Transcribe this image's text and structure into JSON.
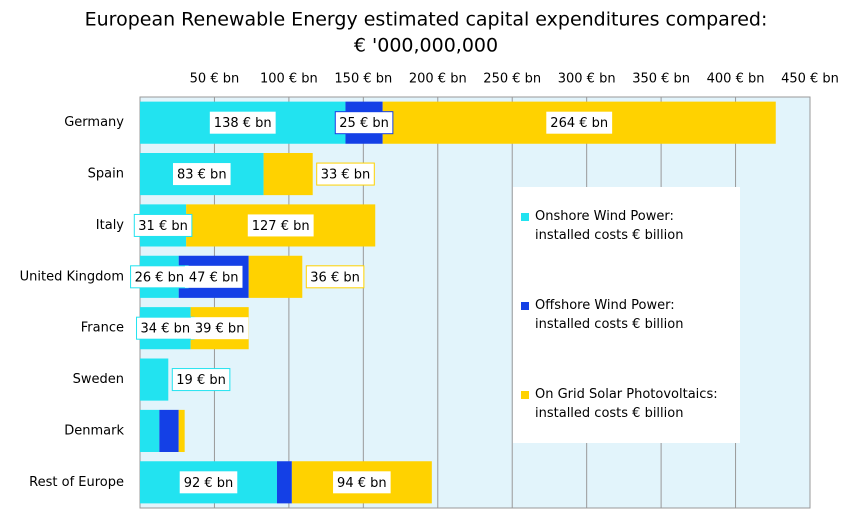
{
  "chart_data": {
    "type": "bar",
    "orientation": "horizontal",
    "stacked": true,
    "title": "European Renewable Energy estimated capital expenditures compared:",
    "subtitle": "€ '000,000,000",
    "categories": [
      "Germany",
      "Spain",
      "Italy",
      "United Kingdom",
      "France",
      "Sweden",
      "Denmark",
      "Rest of Europe"
    ],
    "series": [
      {
        "name": "Onshore Wind Power:\ninstalled costs € billion",
        "color": "#22e3f0",
        "values": [
          138,
          83,
          31,
          26,
          34,
          19,
          13,
          92
        ],
        "value_labels": [
          "138 € bn",
          "83 € bn",
          "31 € bn",
          "26 € bn",
          "34 € bn",
          "19 € bn",
          null,
          "92 € bn"
        ]
      },
      {
        "name": "Offshore Wind Power:\ninstalled costs € billion",
        "color": "#1440e6",
        "values": [
          25,
          null,
          null,
          47,
          null,
          null,
          13,
          10
        ],
        "value_labels": [
          "25 € bn",
          null,
          null,
          "47 € bn",
          null,
          null,
          null,
          null
        ]
      },
      {
        "name": "On Grid Solar Photovoltaics:\ninstalled costs € billion",
        "color": "#ffd200",
        "values": [
          264,
          33,
          127,
          36,
          39,
          null,
          4,
          94
        ],
        "value_labels": [
          "264 € bn",
          "33 € bn",
          "127 € bn",
          "36 € bn",
          "39 € bn",
          null,
          null,
          "94 € bn"
        ]
      }
    ],
    "xlim": [
      0,
      450
    ],
    "xticks": [
      {
        "value": 50,
        "label": "50 € bn"
      },
      {
        "value": 100,
        "label": "100 € bn"
      },
      {
        "value": 150,
        "label": "150 € bn"
      },
      {
        "value": 200,
        "label": "200 € bn"
      },
      {
        "value": 250,
        "label": "250 € bn"
      },
      {
        "value": 300,
        "label": "300 € bn"
      },
      {
        "value": 350,
        "label": "350 € bn"
      },
      {
        "value": 400,
        "label": "400 € bn"
      },
      {
        "value": 450,
        "label": "450 € bn"
      }
    ],
    "grid": true,
    "legend": "right"
  }
}
